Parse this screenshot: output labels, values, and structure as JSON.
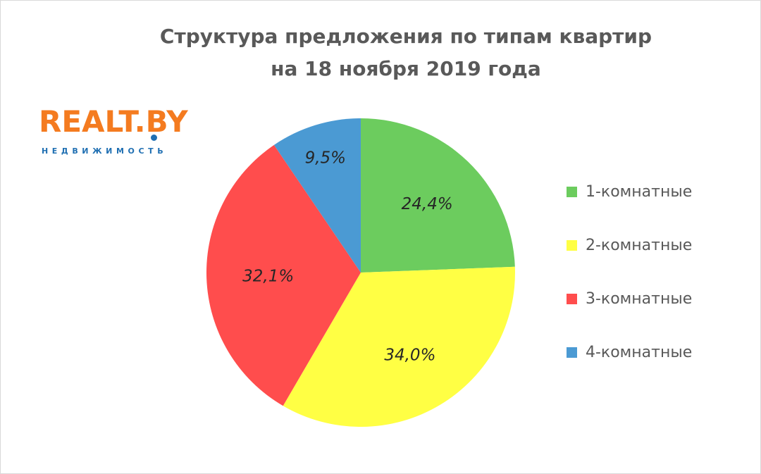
{
  "logo": {
    "brand": "REALT.BY",
    "subtitle": "недвижимость"
  },
  "chart_data": {
    "type": "pie",
    "title_lines": [
      "Структура предложения по типам квартир",
      "на 18 ноября 2019 года"
    ],
    "categories": [
      "1-комнатные",
      "2-комнатные",
      "3-комнатные",
      "4-комнатные"
    ],
    "values": [
      24.4,
      34.0,
      32.1,
      9.5
    ],
    "data_labels": [
      "24,4%",
      "34,0%",
      "32,1%",
      "9,5%"
    ],
    "colors": [
      "#6ccc5e",
      "#ffff44",
      "#ff4d4d",
      "#4b9ad3"
    ],
    "start_angle": "12 o'clock",
    "direction": "clockwise",
    "legend_position": "right"
  }
}
